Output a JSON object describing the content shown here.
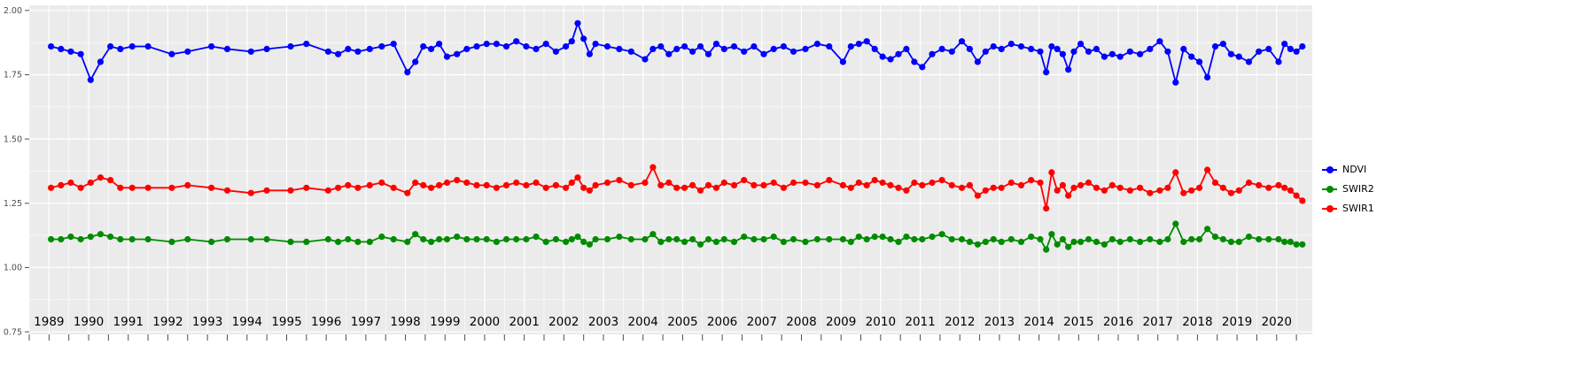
{
  "chart_data": {
    "type": "line",
    "title": "",
    "xlabel": "",
    "ylabel": "",
    "grid": true,
    "panel_bg": "#EBEBEB",
    "grid_major_color": "#FFFFFF",
    "grid_minor_color": "#FFFFFF",
    "axis_text_color": "#4D4D4D",
    "x_label_color": "#000000",
    "xlim": [
      1988.5,
      2020.9
    ],
    "ylim": [
      0.74,
      2.02
    ],
    "y_ticks": [
      0.75,
      1.0,
      1.25,
      1.5,
      1.75,
      2.0
    ],
    "y_tick_labels": [
      "0.75",
      "1.00",
      "1.25",
      "1.50",
      "1.75",
      "2.00"
    ],
    "x_ticks": [
      1989,
      1990,
      1991,
      1992,
      1993,
      1994,
      1995,
      1996,
      1997,
      1998,
      1999,
      2000,
      2001,
      2002,
      2003,
      2004,
      2005,
      2006,
      2007,
      2008,
      2009,
      2010,
      2011,
      2012,
      2013,
      2014,
      2015,
      2016,
      2017,
      2018,
      2019,
      2020
    ],
    "x_tick_labels": [
      "1989",
      "1990",
      "1991",
      "1992",
      "1993",
      "1994",
      "1995",
      "1996",
      "1997",
      "1998",
      "1999",
      "2000",
      "2001",
      "2002",
      "2003",
      "2004",
      "2005",
      "2006",
      "2007",
      "2008",
      "2009",
      "2010",
      "2011",
      "2012",
      "2013",
      "2014",
      "2015",
      "2016",
      "2017",
      "2018",
      "2019",
      "2020"
    ],
    "x": [
      1989.05,
      1989.3,
      1989.55,
      1989.8,
      1990.05,
      1990.3,
      1990.55,
      1990.8,
      1991.1,
      1991.5,
      1992.1,
      1992.5,
      1993.1,
      1993.5,
      1994.1,
      1994.5,
      1995.1,
      1995.5,
      1996.05,
      1996.3,
      1996.55,
      1996.8,
      1997.1,
      1997.4,
      1997.7,
      1998.05,
      1998.25,
      1998.45,
      1998.65,
      1998.85,
      1999.05,
      1999.3,
      1999.55,
      1999.8,
      2000.05,
      2000.3,
      2000.55,
      2000.8,
      2001.05,
      2001.3,
      2001.55,
      2001.8,
      2002.05,
      2002.2,
      2002.35,
      2002.5,
      2002.65,
      2002.8,
      2003.1,
      2003.4,
      2003.7,
      2004.05,
      2004.25,
      2004.45,
      2004.65,
      2004.85,
      2005.05,
      2005.25,
      2005.45,
      2005.65,
      2005.85,
      2006.05,
      2006.3,
      2006.55,
      2006.8,
      2007.05,
      2007.3,
      2007.55,
      2007.8,
      2008.1,
      2008.4,
      2008.7,
      2009.05,
      2009.25,
      2009.45,
      2009.65,
      2009.85,
      2010.05,
      2010.25,
      2010.45,
      2010.65,
      2010.85,
      2011.05,
      2011.3,
      2011.55,
      2011.8,
      2012.05,
      2012.25,
      2012.45,
      2012.65,
      2012.85,
      2013.05,
      2013.3,
      2013.55,
      2013.8,
      2014.03,
      2014.18,
      2014.32,
      2014.46,
      2014.6,
      2014.74,
      2014.88,
      2015.05,
      2015.25,
      2015.45,
      2015.65,
      2015.85,
      2016.05,
      2016.3,
      2016.55,
      2016.8,
      2017.05,
      2017.25,
      2017.45,
      2017.65,
      2017.85,
      2018.05,
      2018.25,
      2018.45,
      2018.65,
      2018.85,
      2019.05,
      2019.3,
      2019.55,
      2019.8,
      2020.05,
      2020.2,
      2020.35,
      2020.5,
      2020.65
    ],
    "series": [
      {
        "name": "NDVI",
        "color": "#0000FF",
        "values": [
          1.86,
          1.85,
          1.84,
          1.83,
          1.73,
          1.8,
          1.86,
          1.85,
          1.86,
          1.86,
          1.83,
          1.84,
          1.86,
          1.85,
          1.84,
          1.85,
          1.86,
          1.87,
          1.84,
          1.83,
          1.85,
          1.84,
          1.85,
          1.86,
          1.87,
          1.76,
          1.8,
          1.86,
          1.85,
          1.87,
          1.82,
          1.83,
          1.85,
          1.86,
          1.87,
          1.87,
          1.86,
          1.88,
          1.86,
          1.85,
          1.87,
          1.84,
          1.86,
          1.88,
          1.95,
          1.89,
          1.83,
          1.87,
          1.86,
          1.85,
          1.84,
          1.81,
          1.85,
          1.86,
          1.83,
          1.85,
          1.86,
          1.84,
          1.86,
          1.83,
          1.87,
          1.85,
          1.86,
          1.84,
          1.86,
          1.83,
          1.85,
          1.86,
          1.84,
          1.85,
          1.87,
          1.86,
          1.8,
          1.86,
          1.87,
          1.88,
          1.85,
          1.82,
          1.81,
          1.83,
          1.85,
          1.8,
          1.78,
          1.83,
          1.85,
          1.84,
          1.88,
          1.85,
          1.8,
          1.84,
          1.86,
          1.85,
          1.87,
          1.86,
          1.85,
          1.84,
          1.76,
          1.86,
          1.85,
          1.83,
          1.77,
          1.84,
          1.87,
          1.84,
          1.85,
          1.82,
          1.83,
          1.82,
          1.84,
          1.83,
          1.85,
          1.88,
          1.84,
          1.72,
          1.85,
          1.82,
          1.8,
          1.74,
          1.86,
          1.87,
          1.83,
          1.82,
          1.8,
          1.84,
          1.85,
          1.8,
          1.87,
          1.85,
          1.84,
          1.86
        ]
      },
      {
        "name": "SWIR2",
        "color": "#008B00",
        "values": [
          1.11,
          1.11,
          1.12,
          1.11,
          1.12,
          1.13,
          1.12,
          1.11,
          1.11,
          1.11,
          1.1,
          1.11,
          1.1,
          1.11,
          1.11,
          1.11,
          1.1,
          1.1,
          1.11,
          1.1,
          1.11,
          1.1,
          1.1,
          1.12,
          1.11,
          1.1,
          1.13,
          1.11,
          1.1,
          1.11,
          1.11,
          1.12,
          1.11,
          1.11,
          1.11,
          1.1,
          1.11,
          1.11,
          1.11,
          1.12,
          1.1,
          1.11,
          1.1,
          1.11,
          1.12,
          1.1,
          1.09,
          1.11,
          1.11,
          1.12,
          1.11,
          1.11,
          1.13,
          1.1,
          1.11,
          1.11,
          1.1,
          1.11,
          1.09,
          1.11,
          1.1,
          1.11,
          1.1,
          1.12,
          1.11,
          1.11,
          1.12,
          1.1,
          1.11,
          1.1,
          1.11,
          1.11,
          1.11,
          1.1,
          1.12,
          1.11,
          1.12,
          1.12,
          1.11,
          1.1,
          1.12,
          1.11,
          1.11,
          1.12,
          1.13,
          1.11,
          1.11,
          1.1,
          1.09,
          1.1,
          1.11,
          1.1,
          1.11,
          1.1,
          1.12,
          1.11,
          1.07,
          1.13,
          1.09,
          1.11,
          1.08,
          1.1,
          1.1,
          1.11,
          1.1,
          1.09,
          1.11,
          1.1,
          1.11,
          1.1,
          1.11,
          1.1,
          1.11,
          1.17,
          1.1,
          1.11,
          1.11,
          1.15,
          1.12,
          1.11,
          1.1,
          1.1,
          1.12,
          1.11,
          1.11,
          1.11,
          1.1,
          1.1,
          1.09,
          1.09
        ]
      },
      {
        "name": "SWIR1",
        "color": "#FF0000",
        "values": [
          1.31,
          1.32,
          1.33,
          1.31,
          1.33,
          1.35,
          1.34,
          1.31,
          1.31,
          1.31,
          1.31,
          1.32,
          1.31,
          1.3,
          1.29,
          1.3,
          1.3,
          1.31,
          1.3,
          1.31,
          1.32,
          1.31,
          1.32,
          1.33,
          1.31,
          1.29,
          1.33,
          1.32,
          1.31,
          1.32,
          1.33,
          1.34,
          1.33,
          1.32,
          1.32,
          1.31,
          1.32,
          1.33,
          1.32,
          1.33,
          1.31,
          1.32,
          1.31,
          1.33,
          1.35,
          1.31,
          1.3,
          1.32,
          1.33,
          1.34,
          1.32,
          1.33,
          1.39,
          1.32,
          1.33,
          1.31,
          1.31,
          1.32,
          1.3,
          1.32,
          1.31,
          1.33,
          1.32,
          1.34,
          1.32,
          1.32,
          1.33,
          1.31,
          1.33,
          1.33,
          1.32,
          1.34,
          1.32,
          1.31,
          1.33,
          1.32,
          1.34,
          1.33,
          1.32,
          1.31,
          1.3,
          1.33,
          1.32,
          1.33,
          1.34,
          1.32,
          1.31,
          1.32,
          1.28,
          1.3,
          1.31,
          1.31,
          1.33,
          1.32,
          1.34,
          1.33,
          1.23,
          1.37,
          1.3,
          1.32,
          1.28,
          1.31,
          1.32,
          1.33,
          1.31,
          1.3,
          1.32,
          1.31,
          1.3,
          1.31,
          1.29,
          1.3,
          1.31,
          1.37,
          1.29,
          1.3,
          1.31,
          1.38,
          1.33,
          1.31,
          1.29,
          1.3,
          1.33,
          1.32,
          1.31,
          1.32,
          1.31,
          1.3,
          1.28,
          1.26
        ]
      }
    ],
    "legend": {
      "position": "right",
      "entries": [
        {
          "label": "NDVI",
          "color": "#0000FF"
        },
        {
          "label": "SWIR2",
          "color": "#008B00"
        },
        {
          "label": "SWIR1",
          "color": "#FF0000"
        }
      ]
    }
  }
}
